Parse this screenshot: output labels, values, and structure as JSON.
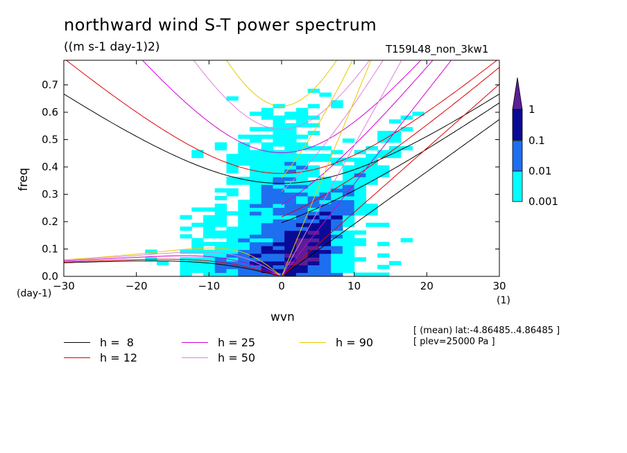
{
  "header": {
    "title": "northward wind S-T power spectrum",
    "units": "((m s-1 day-1)2)",
    "run_name": "T159L48_non_3kw1"
  },
  "meta": {
    "line1": "[ (mean) lat:-4.86485..4.86485 ]",
    "line2": "[ plev=25000 Pa ]"
  },
  "colorbar": {
    "levels": [
      "1",
      "0.1",
      "0.01",
      "0.001"
    ],
    "colors": [
      "#5a1e96",
      "#0a0a96",
      "#1e6ef0",
      "#00ffff"
    ]
  },
  "chart_data": {
    "type": "heatmap",
    "title": "northward wind S-T power spectrum",
    "subtitle": "((m s-1 day-1)2)",
    "xlabel": "wvn",
    "ylabel": "freq",
    "x_unit": "(1)",
    "y_unit": "(day-1)",
    "xlim": [
      -30,
      30
    ],
    "ylim": [
      0,
      0.79
    ],
    "xticks": [
      "-30",
      "-20",
      "-10",
      "0",
      "10",
      "20",
      "30"
    ],
    "yticks": [
      "0.0",
      "0.1",
      "0.2",
      "0.3",
      "0.4",
      "0.5",
      "0.6",
      "0.7"
    ],
    "contour_levels": [
      0.001,
      0.01,
      0.1,
      1
    ],
    "dispersion_curves": [
      {
        "label": "h =  8",
        "h": 8,
        "color": "#000000"
      },
      {
        "label": "h = 12",
        "h": 12,
        "color": "#e00000"
      },
      {
        "label": "h = 25",
        "h": 25,
        "color": "#d000d0"
      },
      {
        "label": "h = 50",
        "h": 50,
        "color": "#e080e0"
      },
      {
        "label": "h = 90",
        "h": 90,
        "color": "#e8c800"
      }
    ]
  }
}
